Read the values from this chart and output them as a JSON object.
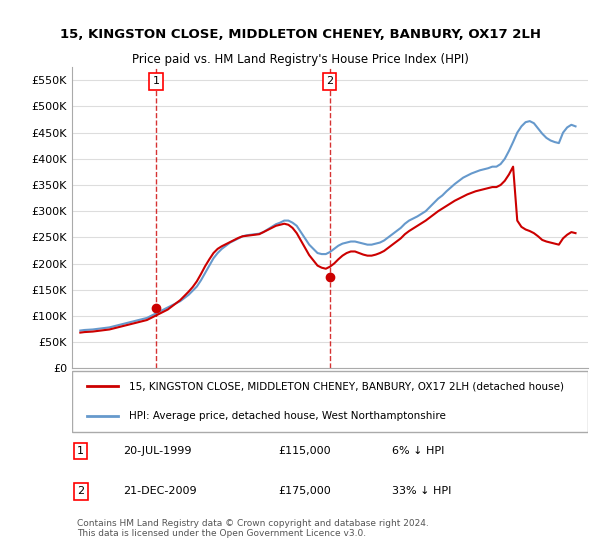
{
  "title": "15, KINGSTON CLOSE, MIDDLETON CHENEY, BANBURY, OX17 2LH",
  "subtitle": "Price paid vs. HM Land Registry's House Price Index (HPI)",
  "legend_line1": "15, KINGSTON CLOSE, MIDDLETON CHENEY, BANBURY, OX17 2LH (detached house)",
  "legend_line2": "HPI: Average price, detached house, West Northamptonshire",
  "annotation1_label": "1",
  "annotation1_date": "20-JUL-1999",
  "annotation1_price": "£115,000",
  "annotation1_hpi": "6% ↓ HPI",
  "annotation2_label": "2",
  "annotation2_date": "21-DEC-2009",
  "annotation2_price": "£175,000",
  "annotation2_hpi": "33% ↓ HPI",
  "footnote": "Contains HM Land Registry data © Crown copyright and database right 2024.\nThis data is licensed under the Open Government Licence v3.0.",
  "vline1_x": 1999.55,
  "vline2_x": 2009.97,
  "point1_x": 1999.55,
  "point1_y": 115000,
  "point2_x": 2009.97,
  "point2_y": 175000,
  "red_line_color": "#cc0000",
  "blue_line_color": "#6699cc",
  "vline_color": "#cc0000",
  "background_color": "#ffffff",
  "grid_color": "#dddddd",
  "ylim": [
    0,
    575000
  ],
  "yticks": [
    0,
    50000,
    100000,
    150000,
    200000,
    250000,
    300000,
    350000,
    400000,
    450000,
    500000,
    550000
  ],
  "xlim": [
    1994.5,
    2025.5
  ],
  "xticks": [
    1995,
    1996,
    1997,
    1998,
    1999,
    2000,
    2001,
    2002,
    2003,
    2004,
    2005,
    2006,
    2007,
    2008,
    2009,
    2010,
    2011,
    2012,
    2013,
    2014,
    2015,
    2016,
    2017,
    2018,
    2019,
    2020,
    2021,
    2022,
    2023,
    2024,
    2025
  ],
  "hpi_years": [
    1995.0,
    1995.25,
    1995.5,
    1995.75,
    1996.0,
    1996.25,
    1996.5,
    1996.75,
    1997.0,
    1997.25,
    1997.5,
    1997.75,
    1998.0,
    1998.25,
    1998.5,
    1998.75,
    1999.0,
    1999.25,
    1999.5,
    1999.75,
    2000.0,
    2000.25,
    2000.5,
    2000.75,
    2001.0,
    2001.25,
    2001.5,
    2001.75,
    2002.0,
    2002.25,
    2002.5,
    2002.75,
    2003.0,
    2003.25,
    2003.5,
    2003.75,
    2004.0,
    2004.25,
    2004.5,
    2004.75,
    2005.0,
    2005.25,
    2005.5,
    2005.75,
    2006.0,
    2006.25,
    2006.5,
    2006.75,
    2007.0,
    2007.25,
    2007.5,
    2007.75,
    2008.0,
    2008.25,
    2008.5,
    2008.75,
    2009.0,
    2009.25,
    2009.5,
    2009.75,
    2010.0,
    2010.25,
    2010.5,
    2010.75,
    2011.0,
    2011.25,
    2011.5,
    2011.75,
    2012.0,
    2012.25,
    2012.5,
    2012.75,
    2013.0,
    2013.25,
    2013.5,
    2013.75,
    2014.0,
    2014.25,
    2014.5,
    2014.75,
    2015.0,
    2015.25,
    2015.5,
    2015.75,
    2016.0,
    2016.25,
    2016.5,
    2016.75,
    2017.0,
    2017.25,
    2017.5,
    2017.75,
    2018.0,
    2018.25,
    2018.5,
    2018.75,
    2019.0,
    2019.25,
    2019.5,
    2019.75,
    2020.0,
    2020.25,
    2020.5,
    2020.75,
    2021.0,
    2021.25,
    2021.5,
    2021.75,
    2022.0,
    2022.25,
    2022.5,
    2022.75,
    2023.0,
    2023.25,
    2023.5,
    2023.75,
    2024.0,
    2024.25,
    2024.5,
    2024.75
  ],
  "hpi_values": [
    72000,
    73000,
    73500,
    74000,
    75000,
    76000,
    77000,
    78000,
    80000,
    82000,
    84000,
    86000,
    88000,
    90000,
    92000,
    94000,
    96000,
    100000,
    104000,
    108000,
    112000,
    116000,
    120000,
    124000,
    128000,
    134000,
    140000,
    148000,
    156000,
    168000,
    182000,
    196000,
    210000,
    220000,
    228000,
    234000,
    240000,
    244000,
    248000,
    252000,
    254000,
    255000,
    256000,
    257000,
    260000,
    265000,
    270000,
    275000,
    278000,
    282000,
    282000,
    278000,
    272000,
    260000,
    248000,
    236000,
    228000,
    220000,
    218000,
    218000,
    222000,
    228000,
    234000,
    238000,
    240000,
    242000,
    242000,
    240000,
    238000,
    236000,
    236000,
    238000,
    240000,
    244000,
    250000,
    256000,
    262000,
    268000,
    276000,
    282000,
    286000,
    290000,
    295000,
    300000,
    308000,
    316000,
    324000,
    330000,
    338000,
    345000,
    352000,
    358000,
    364000,
    368000,
    372000,
    375000,
    378000,
    380000,
    382000,
    385000,
    385000,
    390000,
    400000,
    415000,
    432000,
    450000,
    462000,
    470000,
    472000,
    468000,
    458000,
    448000,
    440000,
    435000,
    432000,
    430000,
    450000,
    460000,
    465000,
    462000
  ],
  "red_years": [
    1995.0,
    1995.25,
    1995.5,
    1995.75,
    1996.0,
    1996.25,
    1996.5,
    1996.75,
    1997.0,
    1997.25,
    1997.5,
    1997.75,
    1998.0,
    1998.25,
    1998.5,
    1998.75,
    1999.0,
    1999.25,
    1999.5,
    1999.75,
    2000.0,
    2000.25,
    2000.5,
    2000.75,
    2001.0,
    2001.25,
    2001.5,
    2001.75,
    2002.0,
    2002.25,
    2002.5,
    2002.75,
    2003.0,
    2003.25,
    2003.5,
    2003.75,
    2004.0,
    2004.25,
    2004.5,
    2004.75,
    2005.0,
    2005.25,
    2005.5,
    2005.75,
    2006.0,
    2006.25,
    2006.5,
    2006.75,
    2007.0,
    2007.25,
    2007.5,
    2007.75,
    2008.0,
    2008.25,
    2008.5,
    2008.75,
    2009.0,
    2009.25,
    2009.5,
    2009.75,
    2010.0,
    2010.25,
    2010.5,
    2010.75,
    2011.0,
    2011.25,
    2011.5,
    2011.75,
    2012.0,
    2012.25,
    2012.5,
    2012.75,
    2013.0,
    2013.25,
    2013.5,
    2013.75,
    2014.0,
    2014.25,
    2014.5,
    2014.75,
    2015.0,
    2015.25,
    2015.5,
    2015.75,
    2016.0,
    2016.25,
    2016.5,
    2016.75,
    2017.0,
    2017.25,
    2017.5,
    2017.75,
    2018.0,
    2018.25,
    2018.5,
    2018.75,
    2019.0,
    2019.25,
    2019.5,
    2019.75,
    2020.0,
    2020.25,
    2020.5,
    2020.75,
    2021.0,
    2021.25,
    2021.5,
    2021.75,
    2022.0,
    2022.25,
    2022.5,
    2022.75,
    2023.0,
    2023.25,
    2023.5,
    2023.75,
    2024.0,
    2024.25,
    2024.5,
    2024.75
  ],
  "red_values": [
    68000,
    69000,
    69500,
    70000,
    71000,
    72000,
    73000,
    74000,
    76000,
    78000,
    80000,
    82000,
    84000,
    86000,
    88000,
    90000,
    92000,
    96000,
    100000,
    104000,
    108000,
    112000,
    118000,
    124000,
    130000,
    138000,
    146000,
    155000,
    166000,
    180000,
    195000,
    208000,
    220000,
    228000,
    233000,
    237000,
    241000,
    245000,
    249000,
    252000,
    253000,
    254000,
    255000,
    256000,
    260000,
    264000,
    268000,
    272000,
    274000,
    276000,
    274000,
    268000,
    258000,
    244000,
    230000,
    216000,
    206000,
    196000,
    192000,
    190000,
    194000,
    200000,
    208000,
    215000,
    220000,
    223000,
    223000,
    220000,
    217000,
    215000,
    215000,
    217000,
    220000,
    224000,
    230000,
    236000,
    242000,
    248000,
    256000,
    262000,
    267000,
    272000,
    277000,
    282000,
    288000,
    294000,
    300000,
    305000,
    310000,
    315000,
    320000,
    324000,
    328000,
    332000,
    335000,
    338000,
    340000,
    342000,
    344000,
    346000,
    346000,
    350000,
    358000,
    370000,
    385000,
    282000,
    270000,
    265000,
    262000,
    258000,
    252000,
    245000,
    242000,
    240000,
    238000,
    236000,
    248000,
    255000,
    260000,
    258000
  ]
}
